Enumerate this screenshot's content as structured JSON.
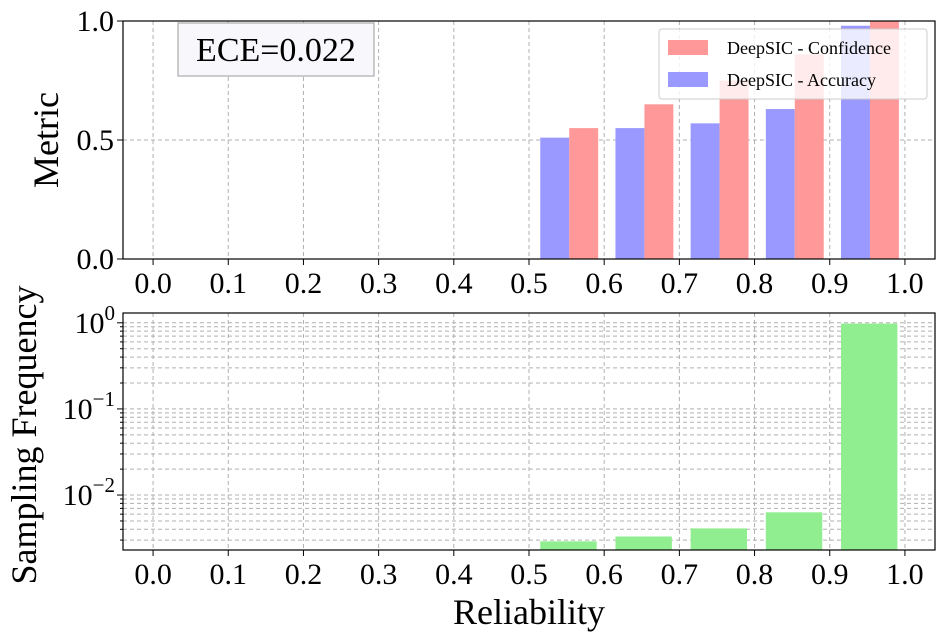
{
  "chart_data": [
    {
      "type": "bar",
      "ylabel": "Metric",
      "xlabel": "",
      "xlim": [
        -0.04,
        1.04
      ],
      "ylim": [
        0,
        1
      ],
      "x_ticks": [
        "0.0",
        "0.1",
        "0.2",
        "0.3",
        "0.4",
        "0.5",
        "0.6",
        "0.7",
        "0.8",
        "0.9",
        "1.0"
      ],
      "y_ticks": [
        "0.0",
        "0.5",
        "1.0"
      ],
      "bins": [
        0.5,
        0.6,
        0.7,
        0.8,
        0.9
      ],
      "series": [
        {
          "name": "DeepSIC - Accuracy",
          "color": "#9999ff",
          "values": [
            0.51,
            0.55,
            0.57,
            0.63,
            0.98
          ]
        },
        {
          "name": "DeepSIC - Confidence",
          "color": "#ff9999",
          "values": [
            0.55,
            0.65,
            0.75,
            0.86,
            1.0
          ]
        }
      ],
      "legend": {
        "placement": "top-right",
        "items": [
          "DeepSIC - Confidence",
          "DeepSIC - Accuracy"
        ]
      },
      "annotation": "ECE=0.022",
      "grid": true
    },
    {
      "type": "bar",
      "xlabel": "Reliability",
      "ylabel": "Sampling Frequency",
      "yscale": "log",
      "xlim": [
        -0.04,
        1.04
      ],
      "ylim": [
        0.0023,
        1.3
      ],
      "x_ticks": [
        "0.0",
        "0.1",
        "0.2",
        "0.3",
        "0.4",
        "0.5",
        "0.6",
        "0.7",
        "0.8",
        "0.9",
        "1.0"
      ],
      "bins": [
        0.5,
        0.6,
        0.7,
        0.8,
        0.9
      ],
      "values": [
        0.0029,
        0.0033,
        0.0041,
        0.0063,
        0.98
      ],
      "color": "#90ee90",
      "grid": true
    }
  ]
}
